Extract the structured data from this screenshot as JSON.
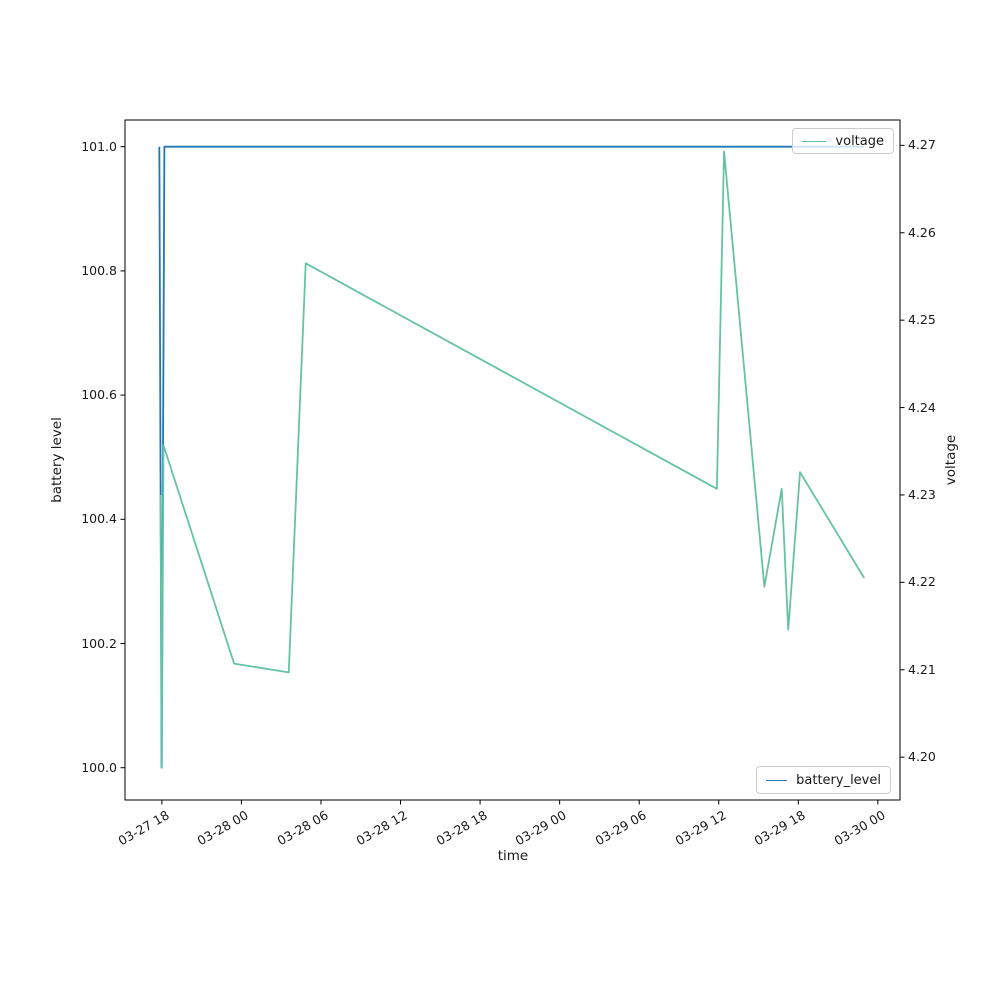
{
  "chart_data": {
    "type": "line",
    "title": "",
    "x_axis": {
      "label": "time",
      "tick_labels": [
        "03-27 18",
        "03-28 00",
        "03-28 06",
        "03-28 12",
        "03-28 18",
        "03-29 00",
        "03-29 06",
        "03-29 12",
        "03-29 18",
        "03-30 00"
      ],
      "tick_hours": [
        0,
        6,
        12,
        18,
        24,
        30,
        36,
        42,
        48,
        54
      ],
      "origin_label": "03-27 18",
      "lim_hours": [
        -2.78,
        55.67
      ]
    },
    "left_axis": {
      "label": "battery level",
      "tick_labels": [
        "100.0",
        "100.2",
        "100.4",
        "100.6",
        "100.8",
        "101.0"
      ],
      "tick_values": [
        100.0,
        100.2,
        100.4,
        100.6,
        100.8,
        101.0
      ],
      "lim": [
        99.948,
        101.043
      ]
    },
    "right_axis": {
      "label": "voltage",
      "tick_labels": [
        "4.20",
        "4.21",
        "4.22",
        "4.23",
        "4.24",
        "4.25",
        "4.26",
        "4.27"
      ],
      "tick_values": [
        4.2,
        4.21,
        4.22,
        4.23,
        4.24,
        4.25,
        4.26,
        4.27
      ],
      "lim": [
        4.1951,
        4.2729
      ]
    },
    "series": [
      {
        "name": "battery_level",
        "axis": "left",
        "color": "#1f77b4",
        "x_hours_after_origin": [
          -0.19,
          -0.02,
          0.19,
          52.97
        ],
        "values": [
          101.0,
          100.0,
          101.0,
          101.0
        ]
      },
      {
        "name": "voltage",
        "axis": "right",
        "color": "#66c2a5",
        "x_hours_after_origin": [
          -0.1,
          0.0,
          0.12,
          5.45,
          9.57,
          10.85,
          41.86,
          42.4,
          45.44,
          46.75,
          47.24,
          48.13,
          52.97
        ],
        "values": [
          4.23,
          4.1988,
          4.2357,
          4.2107,
          4.2097,
          4.2565,
          4.2307,
          4.2693,
          4.2195,
          4.2307,
          4.2146,
          4.2326,
          4.2205
        ]
      }
    ],
    "legends": [
      {
        "label": "voltage",
        "position": "upper right"
      },
      {
        "label": "battery_level",
        "position": "lower right"
      }
    ],
    "grid": false,
    "plot_bg": "#ffffff",
    "spine_color": "#000000"
  }
}
